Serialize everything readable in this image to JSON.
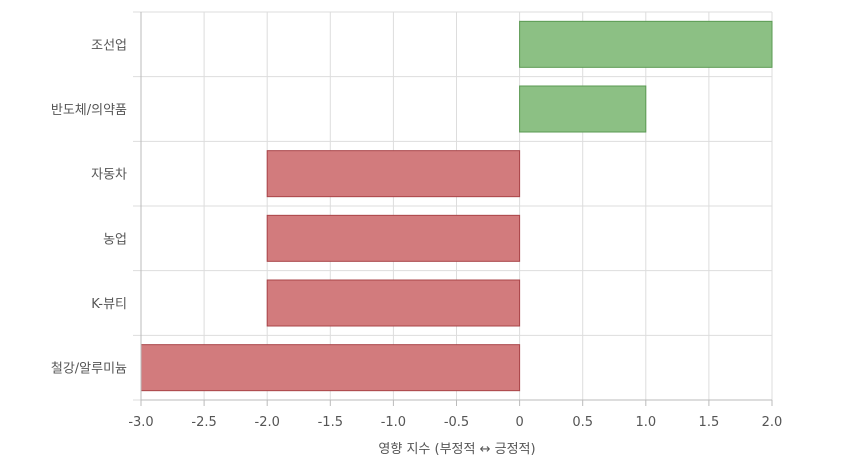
{
  "chart_data": {
    "type": "bar",
    "orientation": "horizontal",
    "categories": [
      "조선업",
      "반도체/의약품",
      "자동차",
      "농업",
      "K-뷰티",
      "철강/알루미늄"
    ],
    "values": [
      2.0,
      1.0,
      -2.0,
      -2.0,
      -2.0,
      -3.0
    ],
    "xlabel": "영향 지수 (부정적 ↔ 긍정적)",
    "ylabel": "",
    "xlim": [
      -3.0,
      2.0
    ],
    "x_ticks": [
      "-3.0",
      "-2.5",
      "-2.0",
      "-1.5",
      "-1.0",
      "-0.5",
      "0",
      "0.5",
      "1.0",
      "1.5",
      "2.0"
    ],
    "x_tick_values": [
      -3.0,
      -2.5,
      -2.0,
      -1.5,
      -1.0,
      -0.5,
      0,
      0.5,
      1.0,
      1.5,
      2.0
    ],
    "grid": true,
    "legend": "none",
    "colors": {
      "positive_fill": "#8cc084",
      "positive_stroke": "#5a9a52",
      "negative_fill": "#d27b7d",
      "negative_stroke": "#a94448",
      "grid": "#dddddd",
      "axis": "#bbbbbb",
      "text": "#555555"
    }
  }
}
